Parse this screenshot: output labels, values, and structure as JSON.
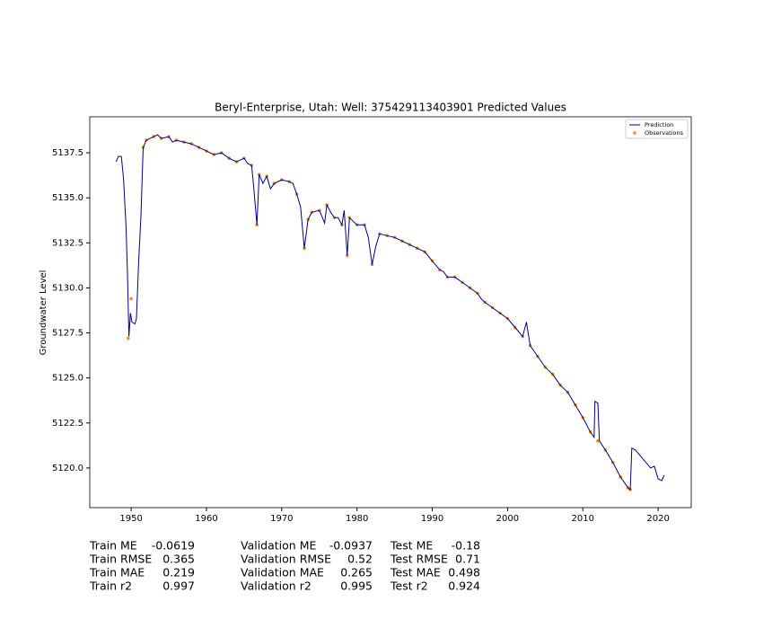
{
  "chart_data": {
    "type": "line",
    "title": "Beryl-Enterprise, Utah: Well: 375429113403901 Predicted Values",
    "ylabel": "Groundwater Level",
    "xlim": [
      1944.5,
      2024.4
    ],
    "ylim": [
      5117.8,
      5139.5
    ],
    "xticks": [
      1950,
      1960,
      1970,
      1980,
      1990,
      2000,
      2010,
      2020
    ],
    "yticks": [
      {
        "value": 5120,
        "label": "5120.0"
      },
      {
        "value": 5122.5,
        "label": "5122.5"
      },
      {
        "value": 5125,
        "label": "5125.0"
      },
      {
        "value": 5127.5,
        "label": "5127.5"
      },
      {
        "value": 5130,
        "label": "5130.0"
      },
      {
        "value": 5132.5,
        "label": "5132.5"
      },
      {
        "value": 5135,
        "label": "5135.0"
      },
      {
        "value": 5137.5,
        "label": "5137.5"
      }
    ],
    "legend": "upper right",
    "series": [
      {
        "name": "Prediction",
        "color": "#00008b",
        "style": "line",
        "x": [
          1948.0,
          1948.3,
          1948.7,
          1949.0,
          1949.3,
          1949.5,
          1949.7,
          1949.9,
          1950.1,
          1950.5,
          1950.7,
          1951.0,
          1951.3,
          1951.6,
          1952,
          1953,
          1953.5,
          1954,
          1955,
          1955.5,
          1956,
          1957,
          1958,
          1959,
          1960,
          1961,
          1962,
          1963,
          1964,
          1965,
          1965.5,
          1966,
          1966.3,
          1966.7,
          1967,
          1967.5,
          1968,
          1968.5,
          1969,
          1970,
          1971,
          1971.5,
          1972,
          1972.5,
          1973,
          1973.5,
          1974,
          1975,
          1975.7,
          1976,
          1976.5,
          1977,
          1977.5,
          1978,
          1978.3,
          1978.7,
          1979,
          1979.5,
          1980,
          1981,
          1981.5,
          1982,
          1982.5,
          1983,
          1984,
          1985,
          1986,
          1987,
          1988,
          1989,
          1990,
          1991,
          1991.5,
          1992,
          1993,
          1994,
          1995,
          1996,
          1996.5,
          1997,
          1998,
          1999,
          2000,
          2001,
          2002,
          2002.5,
          2003,
          2004,
          2005,
          2006,
          2006.5,
          2007,
          2008,
          2009,
          2010,
          2011,
          2011.5,
          2011.6,
          2012,
          2012.2,
          2013,
          2014,
          2015,
          2016,
          2016.3,
          2016.5,
          2017,
          2018,
          2019,
          2019.5,
          2020,
          2020.5,
          2020.8
        ],
        "values": [
          5137.0,
          5137.3,
          5137.3,
          5136.0,
          5133.5,
          5131,
          5127.3,
          5128.6,
          5128.1,
          5128.0,
          5128.3,
          5131.5,
          5134,
          5137.8,
          5138.2,
          5138.4,
          5138.5,
          5138.3,
          5138.4,
          5138.1,
          5138.2,
          5138.1,
          5138.0,
          5137.8,
          5137.6,
          5137.4,
          5137.5,
          5137.2,
          5137.0,
          5137.2,
          5136.9,
          5136.8,
          5135.5,
          5133.5,
          5136.3,
          5135.8,
          5136.2,
          5135.5,
          5135.8,
          5136.0,
          5135.9,
          5135.8,
          5135.2,
          5134.5,
          5132.2,
          5133.8,
          5134.2,
          5134.3,
          5133.6,
          5134.6,
          5134.2,
          5133.9,
          5133.9,
          5133.5,
          5134.3,
          5131.8,
          5133.9,
          5133.7,
          5133.5,
          5133.5,
          5132.8,
          5131.3,
          5132.3,
          5133.0,
          5132.9,
          5132.8,
          5132.6,
          5132.4,
          5132.2,
          5132.0,
          5131.5,
          5131.0,
          5130.9,
          5130.6,
          5130.6,
          5130.3,
          5130.0,
          5129.7,
          5129.4,
          5129.2,
          5128.9,
          5128.6,
          5128.3,
          5127.8,
          5127.3,
          5128.1,
          5126.8,
          5126.2,
          5125.6,
          5125.2,
          5124.9,
          5124.6,
          5124.2,
          5123.5,
          5122.8,
          5122.0,
          5121.7,
          5123.7,
          5123.6,
          5121.5,
          5121.0,
          5120.3,
          5119.5,
          5118.9,
          5118.8,
          5121.1,
          5121.0,
          5120.5,
          5120.0,
          5120.1,
          5119.4,
          5119.3,
          5119.6
        ]
      },
      {
        "name": "Observations",
        "color": "#ff8c00",
        "style": "scatter",
        "x": [
          1949.6,
          1950.0,
          1951.6,
          1952,
          1953,
          1954,
          1955,
          1956,
          1957,
          1958,
          1959,
          1960,
          1961,
          1962,
          1963,
          1964,
          1965,
          1966,
          1966.7,
          1967,
          1968,
          1969,
          1970,
          1971,
          1972,
          1973,
          1973.5,
          1974,
          1975,
          1976,
          1977,
          1978,
          1978.7,
          1979,
          1980,
          1981,
          1982,
          1983,
          1984,
          1985,
          1986,
          1987,
          1988,
          1989,
          1990,
          1991,
          1992,
          1993,
          1994,
          1995,
          1996,
          1997,
          1998,
          1999,
          2000,
          2001,
          2002,
          2003,
          2004,
          2005,
          2006,
          2007,
          2008,
          2009,
          2010,
          2011,
          2012,
          2013,
          2014,
          2015,
          2016,
          2016.3
        ],
        "values": [
          5127.2,
          5129.4,
          5137.8,
          5138.2,
          5138.4,
          5138.3,
          5138.4,
          5138.2,
          5138.1,
          5138.0,
          5137.8,
          5137.6,
          5137.4,
          5137.5,
          5137.2,
          5137.0,
          5137.2,
          5136.8,
          5133.5,
          5136.3,
          5136.2,
          5135.8,
          5136.0,
          5135.9,
          5135.2,
          5132.2,
          5133.8,
          5134.2,
          5134.3,
          5134.6,
          5133.9,
          5133.5,
          5131.8,
          5133.9,
          5133.5,
          5133.5,
          5131.3,
          5133.0,
          5132.9,
          5132.8,
          5132.6,
          5132.4,
          5132.2,
          5132.0,
          5131.5,
          5131.0,
          5130.6,
          5130.6,
          5130.3,
          5130.0,
          5129.7,
          5129.2,
          5128.9,
          5128.6,
          5128.3,
          5127.8,
          5127.3,
          5126.8,
          5126.2,
          5125.6,
          5125.2,
          5124.6,
          5124.2,
          5123.5,
          5122.8,
          5122.0,
          5121.5,
          5121.0,
          5120.3,
          5119.5,
          5118.9,
          5118.8
        ]
      }
    ]
  },
  "metrics": [
    [
      {
        "name": "Train ME",
        "value": -0.0619
      },
      {
        "name": "Train RMSE",
        "value": 0.365
      },
      {
        "name": "Train MAE",
        "value": 0.219
      },
      {
        "name": "Train r2",
        "value": 0.997
      }
    ],
    [
      {
        "name": "Validation ME",
        "value": -0.0937
      },
      {
        "name": "Validation RMSE",
        "value": 0.52
      },
      {
        "name": "Validation MAE",
        "value": 0.265
      },
      {
        "name": "Validation r2",
        "value": 0.995
      }
    ],
    [
      {
        "name": "Test ME",
        "value": -0.18
      },
      {
        "name": "Test RMSE",
        "value": 0.71
      },
      {
        "name": "Test MAE",
        "value": 0.498
      },
      {
        "name": "Test r2",
        "value": 0.924
      }
    ]
  ]
}
